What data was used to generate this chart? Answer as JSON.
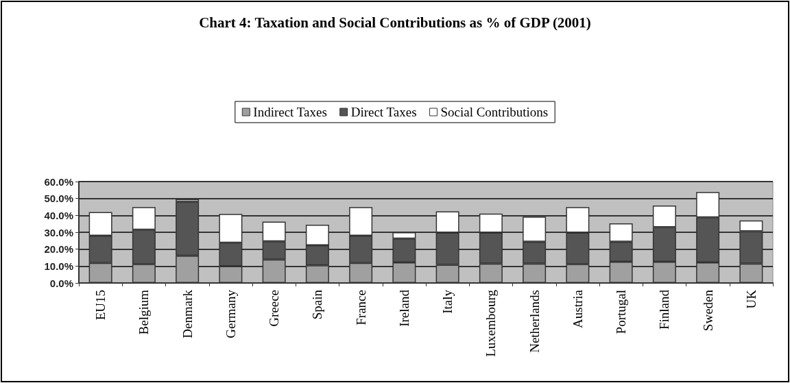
{
  "chart_data": {
    "type": "bar",
    "title": "Chart 4: Taxation and Social Contributions as % of GDP (2001)",
    "categories": [
      "EU15",
      "Belgium",
      "Denmark",
      "Germany",
      "Greece",
      "Spain",
      "France",
      "Ireland",
      "Italy",
      "Luxembourg",
      "Netherlands",
      "Austria",
      "Portugal",
      "Finland",
      "Sweden",
      "UK"
    ],
    "stacked": true,
    "series": [
      {
        "name": "Indirect Taxes",
        "color": "#a0a0a0",
        "values": [
          11.9,
          11.1,
          16.1,
          9.9,
          13.9,
          10.4,
          11.9,
          12.2,
          10.7,
          11.5,
          11.5,
          11.1,
          12.6,
          12.6,
          12.2,
          11.5
        ]
      },
      {
        "name": "Direct Taxes",
        "color": "#555555",
        "values": [
          16.1,
          20.4,
          31.9,
          13.9,
          10.7,
          11.9,
          16.1,
          14.0,
          19.1,
          18.3,
          12.9,
          18.7,
          11.8,
          20.4,
          26.6,
          19.1
        ]
      },
      {
        "name": "Social Contributions",
        "color": "#ffffff",
        "values": [
          14.0,
          13.4,
          1.6,
          17.0,
          11.7,
          12.2,
          16.9,
          3.8,
          12.6,
          11.2,
          14.8,
          15.1,
          10.9,
          12.8,
          15.0,
          6.4
        ]
      }
    ],
    "ylim": [
      0,
      60
    ],
    "yticks": [
      {
        "value": 0,
        "label": "0.0%"
      },
      {
        "value": 10,
        "label": "10.0%"
      },
      {
        "value": 20,
        "label": "20.0%"
      },
      {
        "value": 30,
        "label": "30.0%"
      },
      {
        "value": 40,
        "label": "40.0%"
      },
      {
        "value": 50,
        "label": "50.0%"
      },
      {
        "value": 60,
        "label": "60.0%"
      }
    ],
    "grid": "y",
    "legend": "top"
  }
}
